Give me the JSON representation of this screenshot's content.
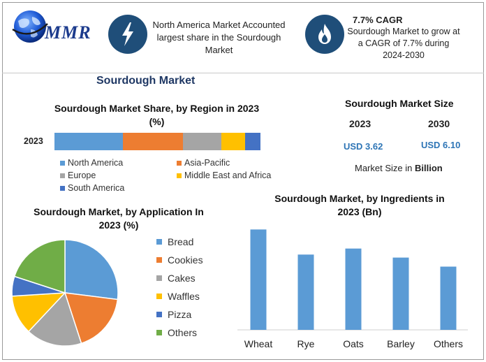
{
  "header": {
    "logo_text": "MMR",
    "north_america_text": "North America Market Accounted largest share in the Sourdough Market",
    "cagr_title": "7.7% CAGR",
    "cagr_text": "Sourdough Market to grow at a CAGR of 7.7% during 2024-2030",
    "lightning_icon": "lightning-icon",
    "flame_icon": "flame-icon",
    "globe_icon": "globe-icon"
  },
  "main_title": "Sourdough Market",
  "market_size": {
    "title": "Sourdough Market Size",
    "year_1": "2023",
    "year_2": "2030",
    "value_1": "USD 3.62",
    "value_2": "USD 6.10",
    "unit_prefix": "Market Size in ",
    "unit_bold": "Billion"
  },
  "chart_data": [
    {
      "type": "bar",
      "orientation": "horizontal-stacked",
      "title": "Sourdough Market Share, by Region in 2023 (%)",
      "categories": [
        "2023"
      ],
      "series": [
        {
          "name": "North America",
          "values": [
            32
          ],
          "color": "#5b9bd5"
        },
        {
          "name": "Asia-Pacific",
          "values": [
            28
          ],
          "color": "#ed7d31"
        },
        {
          "name": "Europe",
          "values": [
            18
          ],
          "color": "#a5a5a5"
        },
        {
          "name": "Middle East and Africa",
          "values": [
            11
          ],
          "color": "#ffc000"
        },
        {
          "name": "South America",
          "values": [
            7
          ],
          "color": "#4472c4"
        }
      ],
      "xlim": [
        0,
        100
      ],
      "legend_position": "bottom"
    },
    {
      "type": "pie",
      "title": "Sourdough Market, by Application In 2023 (%)",
      "labels": [
        "Bread",
        "Cookies",
        "Cakes",
        "Waffles",
        "Pizza",
        "Others"
      ],
      "values": [
        27,
        18,
        17,
        12,
        6,
        20
      ],
      "colors": [
        "#5b9bd5",
        "#ed7d31",
        "#a5a5a5",
        "#ffc000",
        "#4472c4",
        "#70ad47"
      ],
      "legend_position": "right"
    },
    {
      "type": "bar",
      "title": "Sourdough Market, by Ingredients in 2023 (Bn)",
      "categories": [
        "Wheat",
        "Rye",
        "Oats",
        "Barley",
        "Others"
      ],
      "values": [
        1.0,
        0.75,
        0.81,
        0.72,
        0.63
      ],
      "color": "#5b9bd5",
      "ylim": [
        0,
        1.1
      ],
      "grid": false
    }
  ]
}
